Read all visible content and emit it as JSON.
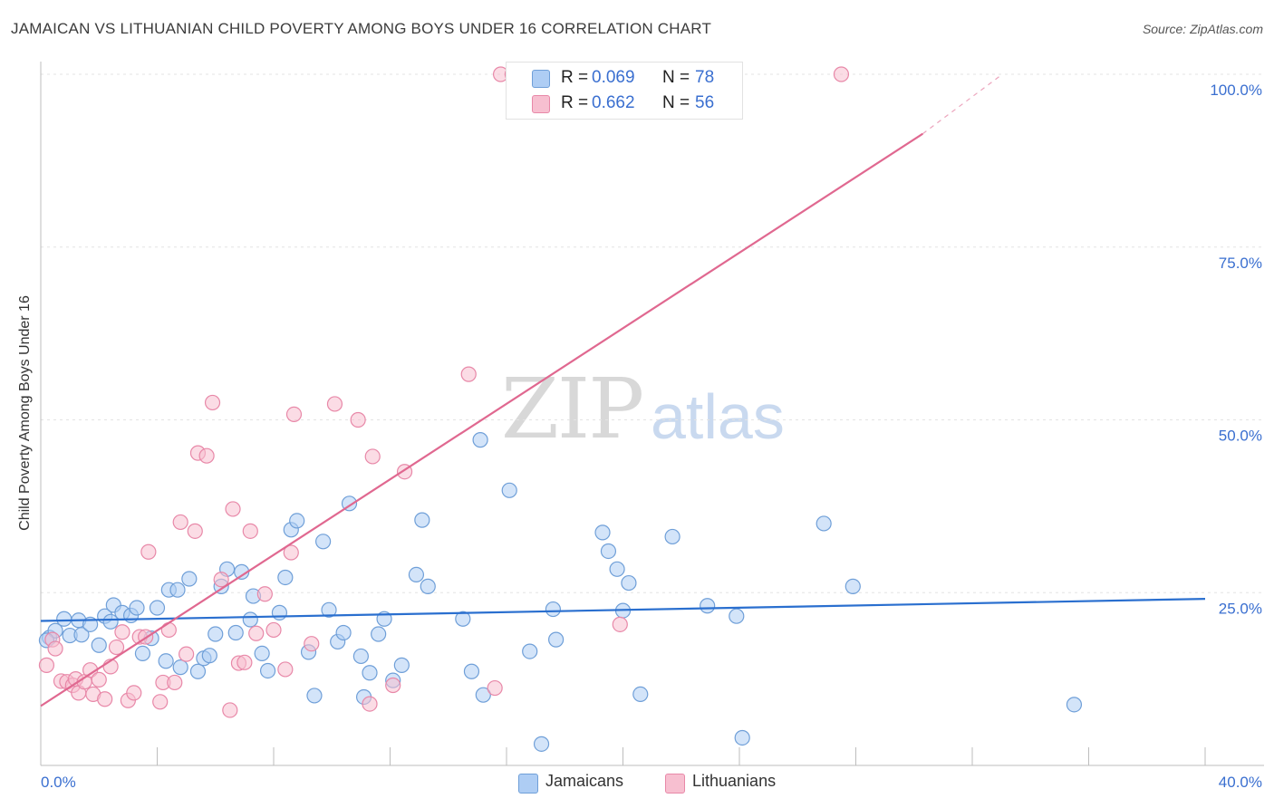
{
  "title": "JAMAICAN VS LITHUANIAN CHILD POVERTY AMONG BOYS UNDER 16 CORRELATION CHART",
  "source": "Source: ZipAtlas.com",
  "watermark": {
    "left": "ZIP",
    "right": "atlas"
  },
  "colors": {
    "jamaicans_fill": "#aecdf4",
    "jamaicans_stroke": "#6f9fd8",
    "jamaicans_line": "#2a6fcf",
    "lithuanians_fill": "#f7bfd0",
    "lithuanians_stroke": "#e888a8",
    "lithuanians_line": "#e06890",
    "axis_text": "#3a6fd0",
    "grid": "#e3e3e3"
  },
  "legend_top": {
    "rows": [
      {
        "r_label": "R =",
        "r_value": "0.069",
        "n_label": "N =",
        "n_value": "78"
      },
      {
        "r_label": "R =",
        "r_value": "0.662",
        "n_label": "N =",
        "n_value": "56"
      }
    ]
  },
  "legend_bottom": [
    "Jamaicans",
    "Lithuanians"
  ],
  "chart_data": {
    "type": "scatter",
    "title": "JAMAICAN VS LITHUANIAN CHILD POVERTY AMONG BOYS UNDER 16 CORRELATION CHART",
    "xlabel": "",
    "ylabel": "Child Poverty Among Boys Under 16",
    "xlim": [
      0,
      40
    ],
    "ylim": [
      0,
      100
    ],
    "x_tick_labels": [
      "0.0%",
      "40.0%"
    ],
    "y_tick_labels": [
      "25.0%",
      "50.0%",
      "75.0%",
      "100.0%"
    ],
    "y_ticks": [
      25,
      50,
      75,
      100
    ],
    "grid": true,
    "legend": "bottom-center",
    "series": [
      {
        "name": "Jamaicans",
        "r": 0.069,
        "n": 78,
        "trend": {
          "x": [
            0,
            40
          ],
          "y": [
            20.9,
            24.1
          ]
        },
        "points": [
          [
            0.3,
            18.5
          ],
          [
            0.5,
            19.5
          ],
          [
            0.8,
            21.2
          ],
          [
            1.0,
            18.8
          ],
          [
            1.3,
            21.0
          ],
          [
            1.4,
            18.9
          ],
          [
            1.7,
            20.4
          ],
          [
            2.0,
            17.4
          ],
          [
            2.2,
            21.6
          ],
          [
            2.4,
            20.8
          ],
          [
            2.5,
            23.2
          ],
          [
            2.8,
            22.1
          ],
          [
            3.1,
            21.7
          ],
          [
            3.3,
            22.8
          ],
          [
            3.5,
            16.2
          ],
          [
            3.8,
            18.4
          ],
          [
            4.0,
            22.8
          ],
          [
            4.3,
            15.1
          ],
          [
            4.4,
            25.4
          ],
          [
            4.7,
            25.4
          ],
          [
            4.8,
            14.2
          ],
          [
            5.1,
            27.0
          ],
          [
            5.4,
            13.6
          ],
          [
            5.6,
            15.5
          ],
          [
            5.8,
            15.9
          ],
          [
            6.0,
            19.0
          ],
          [
            6.2,
            25.9
          ],
          [
            6.4,
            28.4
          ],
          [
            6.7,
            19.2
          ],
          [
            6.9,
            28.0
          ],
          [
            7.2,
            21.1
          ],
          [
            7.3,
            24.5
          ],
          [
            7.6,
            16.2
          ],
          [
            7.8,
            13.7
          ],
          [
            8.2,
            22.1
          ],
          [
            8.4,
            27.2
          ],
          [
            8.6,
            34.1
          ],
          [
            8.8,
            35.4
          ],
          [
            9.2,
            16.4
          ],
          [
            9.4,
            10.1
          ],
          [
            9.7,
            32.4
          ],
          [
            9.9,
            22.5
          ],
          [
            10.2,
            17.9
          ],
          [
            10.4,
            19.2
          ],
          [
            10.6,
            37.9
          ],
          [
            11.0,
            15.8
          ],
          [
            11.1,
            9.9
          ],
          [
            11.3,
            13.4
          ],
          [
            11.6,
            19.0
          ],
          [
            11.8,
            21.2
          ],
          [
            12.1,
            12.3
          ],
          [
            12.4,
            14.5
          ],
          [
            12.9,
            27.6
          ],
          [
            13.1,
            35.5
          ],
          [
            13.3,
            25.9
          ],
          [
            14.5,
            21.2
          ],
          [
            14.8,
            13.6
          ],
          [
            15.1,
            47.1
          ],
          [
            15.2,
            10.2
          ],
          [
            16.1,
            39.8
          ],
          [
            16.8,
            16.5
          ],
          [
            17.2,
            3.1
          ],
          [
            17.6,
            22.6
          ],
          [
            17.7,
            18.2
          ],
          [
            19.3,
            33.7
          ],
          [
            19.5,
            31.0
          ],
          [
            19.8,
            28.4
          ],
          [
            20.0,
            22.4
          ],
          [
            20.2,
            26.4
          ],
          [
            20.6,
            10.3
          ],
          [
            21.7,
            33.1
          ],
          [
            22.9,
            23.1
          ],
          [
            23.9,
            21.6
          ],
          [
            24.1,
            4.0
          ],
          [
            26.9,
            35.0
          ],
          [
            27.9,
            25.9
          ],
          [
            35.5,
            8.8
          ],
          [
            0.2,
            18.1
          ]
        ]
      },
      {
        "name": "Lithuanians",
        "r": 0.662,
        "n": 56,
        "trend": {
          "x": [
            0,
            30.3
          ],
          "y": [
            8.6,
            91.4
          ]
        },
        "trend_dashed": {
          "x": [
            30.3,
            33.0
          ],
          "y": [
            91.4,
            99.9
          ]
        },
        "points": [
          [
            0.2,
            14.5
          ],
          [
            0.4,
            18.2
          ],
          [
            0.5,
            16.9
          ],
          [
            0.7,
            12.2
          ],
          [
            0.9,
            12.1
          ],
          [
            1.1,
            11.6
          ],
          [
            1.2,
            12.5
          ],
          [
            1.3,
            10.5
          ],
          [
            1.5,
            12.1
          ],
          [
            1.7,
            13.8
          ],
          [
            1.8,
            10.3
          ],
          [
            2.0,
            12.4
          ],
          [
            2.2,
            9.6
          ],
          [
            2.4,
            14.3
          ],
          [
            2.6,
            17.1
          ],
          [
            2.8,
            19.3
          ],
          [
            3.0,
            9.4
          ],
          [
            3.2,
            10.5
          ],
          [
            3.4,
            18.6
          ],
          [
            3.6,
            18.6
          ],
          [
            3.7,
            30.9
          ],
          [
            4.1,
            9.2
          ],
          [
            4.2,
            12.0
          ],
          [
            4.4,
            19.6
          ],
          [
            4.6,
            12.0
          ],
          [
            4.8,
            35.2
          ],
          [
            5.0,
            16.1
          ],
          [
            5.3,
            33.9
          ],
          [
            5.4,
            45.2
          ],
          [
            5.7,
            44.8
          ],
          [
            5.9,
            52.5
          ],
          [
            6.2,
            26.9
          ],
          [
            6.5,
            8.0
          ],
          [
            6.6,
            37.1
          ],
          [
            6.8,
            14.8
          ],
          [
            7.0,
            14.9
          ],
          [
            7.2,
            33.9
          ],
          [
            7.4,
            19.1
          ],
          [
            7.7,
            24.8
          ],
          [
            8.0,
            19.6
          ],
          [
            8.4,
            13.9
          ],
          [
            8.6,
            30.8
          ],
          [
            8.7,
            50.8
          ],
          [
            9.3,
            17.6
          ],
          [
            10.1,
            52.3
          ],
          [
            10.9,
            50.0
          ],
          [
            11.3,
            8.9
          ],
          [
            11.4,
            44.7
          ],
          [
            12.1,
            11.6
          ],
          [
            12.5,
            42.5
          ],
          [
            14.7,
            56.6
          ],
          [
            15.6,
            11.2
          ],
          [
            15.8,
            100.0
          ],
          [
            16.2,
            100.0
          ],
          [
            19.9,
            20.4
          ],
          [
            27.5,
            100.0
          ]
        ]
      }
    ]
  }
}
